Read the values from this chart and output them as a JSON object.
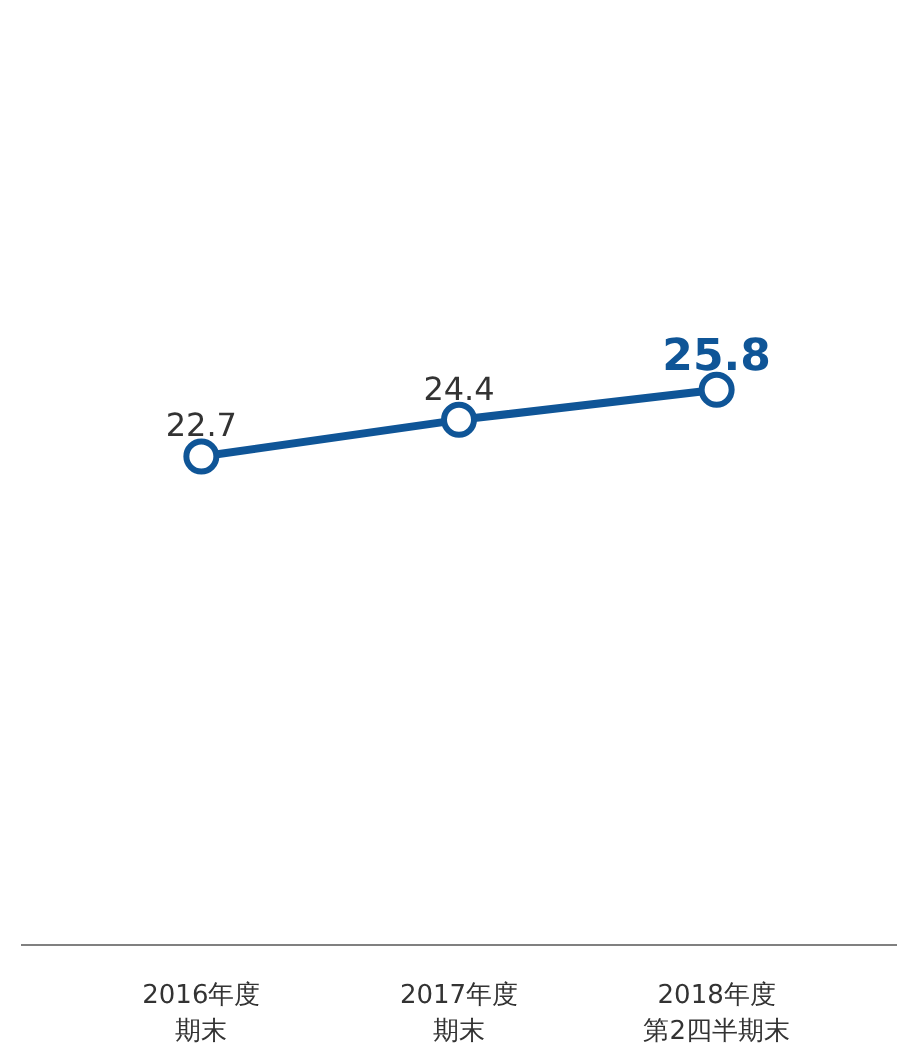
{
  "chart_data": {
    "type": "line",
    "categories": [
      "2016年度期末",
      "2017年度期末",
      "2018年度第2四半期末"
    ],
    "series": [
      {
        "color": "#0f5597",
        "values": [
          22.7,
          24.4,
          25.8
        ]
      }
    ],
    "data_labels": true,
    "marker": "circle",
    "line_style": "solid",
    "grid": false,
    "tick_labels": "x"
  }
}
